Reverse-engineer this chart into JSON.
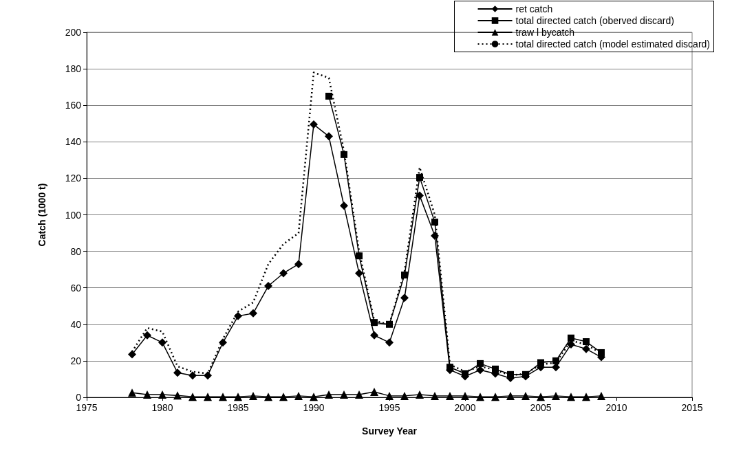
{
  "chart_data": {
    "type": "line",
    "xlabel": "Survey Year",
    "ylabel": "Catch (1000 t)",
    "x": [
      1978,
      1979,
      1980,
      1981,
      1982,
      1983,
      1984,
      1985,
      1986,
      1987,
      1988,
      1989,
      1990,
      1991,
      1992,
      1993,
      1994,
      1995,
      1996,
      1997,
      1998,
      1999,
      2000,
      2001,
      2002,
      2003,
      2004,
      2005,
      2006,
      2007,
      2008,
      2009
    ],
    "series": [
      {
        "name": "ret catch",
        "color": "#000000",
        "marker": "diamond",
        "line_style": "solid",
        "values": [
          23.5,
          34,
          30,
          13.5,
          12,
          12,
          30,
          44.5,
          46,
          61,
          68,
          73,
          149.5,
          143,
          105,
          68,
          34,
          30,
          54.5,
          110.5,
          88.5,
          15,
          11.5,
          15,
          13,
          10.5,
          11.5,
          16.5,
          16.5,
          29,
          26.5,
          22
        ]
      },
      {
        "name": "total directed catch (oberved discard)",
        "color": "#000000",
        "marker": "square",
        "line_style": "solid",
        "values": [
          null,
          null,
          null,
          null,
          null,
          null,
          null,
          null,
          null,
          null,
          null,
          null,
          null,
          165,
          133,
          77.5,
          41,
          40,
          67,
          120.5,
          96,
          16.5,
          13,
          18.5,
          15.5,
          12.5,
          12.5,
          19,
          20,
          32.5,
          30.5,
          24.5
        ]
      },
      {
        "name": "traw l bycatch",
        "color": "#000000",
        "marker": "triangle",
        "line_style": "solid",
        "values": [
          2.5,
          1.5,
          1.5,
          1,
          0.3,
          0.3,
          0.3,
          0.3,
          0.8,
          0.3,
          0.3,
          0.8,
          0.3,
          1.5,
          1.5,
          1.5,
          3,
          0.8,
          0.8,
          1.5,
          0.8,
          0.8,
          0.8,
          0.3,
          0.3,
          0.8,
          0.8,
          0.3,
          0.8,
          0.3,
          0.3,
          0.8
        ]
      },
      {
        "name": "total directed catch (model estimated discard)",
        "color": "#000000",
        "marker": "none",
        "line_style": "dotted",
        "values": [
          25,
          38,
          36,
          17,
          14,
          13,
          32,
          47,
          52,
          73,
          84,
          90,
          178,
          175,
          135,
          80,
          42,
          40,
          69,
          126,
          100,
          18,
          14,
          17,
          15,
          12,
          13,
          18,
          19,
          31,
          29,
          24
        ]
      }
    ],
    "xlim": [
      1975,
      2015
    ],
    "xticks": [
      1975,
      1980,
      1985,
      1990,
      1995,
      2000,
      2005,
      2010,
      2015
    ],
    "ylim": [
      0,
      200
    ],
    "yticks": [
      0,
      20,
      40,
      60,
      80,
      100,
      120,
      140,
      160,
      180,
      200
    ],
    "grid": "y",
    "legend": "top right"
  }
}
